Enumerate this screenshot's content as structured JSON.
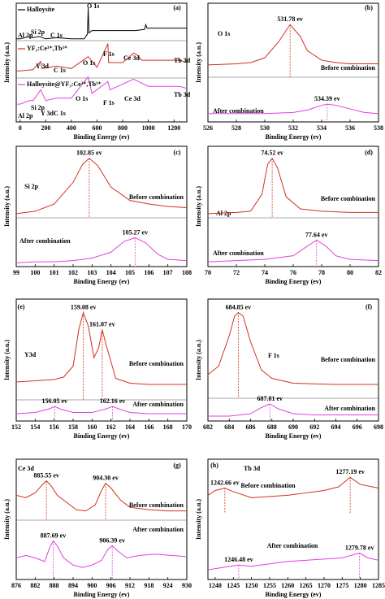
{
  "chart_data": [
    {
      "type": "line",
      "panel_label": "(a)",
      "xlabel": "Binding Energy (ev)",
      "ylabel": "Intensity (a.u.)",
      "xlim": [
        -30,
        1300
      ],
      "xticks": [
        0,
        200,
        400,
        600,
        800,
        1000,
        1200
      ],
      "ylim": [
        0,
        100
      ],
      "series": [
        {
          "name": "Halloysite",
          "color": "#000000",
          "x": [
            -30,
            0,
            75,
            100,
            150,
            200,
            285,
            400,
            500,
            525,
            531,
            537,
            560,
            700,
            900,
            970,
            980,
            990,
            1100,
            1300
          ],
          "values": [
            70,
            70,
            72,
            71,
            72,
            70,
            71,
            70,
            70,
            74,
            96,
            75,
            77,
            77,
            77,
            78,
            82,
            79,
            79,
            79
          ],
          "peak_labels": [
            "Al 2p",
            "Si 2p",
            "C 1s",
            "O 1s"
          ]
        },
        {
          "name": "YF₃:Ce³⁺,Tb³⁺",
          "color": "#d2301e",
          "x": [
            -30,
            0,
            100,
            160,
            170,
            285,
            400,
            531,
            600,
            685,
            690,
            800,
            885,
            904,
            950,
            1242,
            1277,
            1300
          ],
          "values": [
            43,
            43,
            44,
            51,
            45,
            47,
            45,
            55,
            46,
            66,
            50,
            50,
            58,
            57,
            52,
            52,
            51,
            50
          ],
          "peak_labels": [
            "Y 3d",
            "C 1s",
            "O 1s",
            "F 1s",
            "Ce 3d",
            "Tb 3d"
          ]
        },
        {
          "name": "Halloysite@YF₃:Ce³⁺,Tb³⁺",
          "color": "#e040e0",
          "x": [
            -30,
            0,
            74,
            102,
            160,
            200,
            285,
            400,
            531,
            560,
            685,
            700,
            885,
            904,
            1000,
            1242,
            1277,
            1300
          ],
          "values": [
            15,
            15,
            18,
            18,
            27,
            18,
            20,
            20,
            38,
            24,
            34,
            27,
            36,
            35,
            30,
            30,
            29,
            28
          ],
          "peak_labels": [
            "Al 2p",
            "Si 2p",
            "Y 3d",
            "C 1s",
            "O 1s",
            "F 1s",
            "Ce 3d",
            "Tb 3d"
          ]
        }
      ]
    },
    {
      "type": "line",
      "panel_label": "(b)",
      "title": "O 1s",
      "xlabel": "Binding Energy (ev)",
      "ylabel": "Intensity (a.u.)",
      "xlim": [
        526,
        538
      ],
      "xticks": [
        526,
        528,
        530,
        532,
        534,
        536,
        538
      ],
      "ylim": [
        0,
        100
      ],
      "series": [
        {
          "name": "Before combination",
          "color": "#d2301e",
          "x": [
            526,
            528,
            529,
            530,
            531,
            531.78,
            532.5,
            533,
            534,
            535,
            536,
            538
          ],
          "values": [
            48,
            49,
            50,
            54,
            68,
            82,
            72,
            60,
            52,
            50,
            49,
            49
          ],
          "annotations": [
            {
              "value": 531.78,
              "label": "531.78 ev"
            }
          ]
        },
        {
          "name": "After combination",
          "color": "#e040e0",
          "x": [
            526,
            528,
            530,
            532,
            533,
            534,
            534.39,
            535,
            536,
            537,
            538
          ],
          "values": [
            7,
            7,
            7,
            8,
            10,
            14,
            15,
            14,
            11,
            8,
            7
          ],
          "annotations": [
            {
              "value": 534.39,
              "label": "534.39 ev"
            }
          ]
        }
      ]
    },
    {
      "type": "line",
      "panel_label": "(c)",
      "title": "Si 2p",
      "xlabel": "Binding Energy (ev)",
      "ylabel": "Intensity (a.u.)",
      "xlim": [
        99,
        108
      ],
      "xticks": [
        99,
        100,
        101,
        102,
        103,
        104,
        105,
        106,
        107,
        108
      ],
      "ylim": [
        0,
        100
      ],
      "series": [
        {
          "name": "Before combination",
          "color": "#d2301e",
          "x": [
            99,
            100,
            101,
            102,
            102.5,
            102.85,
            103.3,
            104,
            105,
            106,
            107,
            108
          ],
          "values": [
            44,
            46,
            52,
            70,
            85,
            90,
            84,
            66,
            55,
            52,
            50,
            49
          ],
          "annotations": [
            {
              "value": 102.85,
              "label": "102.85 ev"
            }
          ]
        },
        {
          "name": "After combination",
          "color": "#e040e0",
          "x": [
            99,
            100,
            101,
            102,
            103,
            104,
            104.7,
            105.27,
            105.8,
            106.5,
            107,
            108
          ],
          "values": [
            3,
            4,
            4,
            5,
            7,
            12,
            21,
            24,
            20,
            10,
            6,
            5
          ],
          "annotations": [
            {
              "value": 105.27,
              "label": "105.27 ev"
            }
          ]
        }
      ]
    },
    {
      "type": "line",
      "panel_label": "(d)",
      "title": "Al 2p",
      "xlabel": "Binding Energy (ev)",
      "ylabel": "Intensity (a.u.)",
      "xlim": [
        70,
        82
      ],
      "xticks": [
        70,
        72,
        74,
        76,
        78,
        80,
        82
      ],
      "ylim": [
        0,
        100
      ],
      "series": [
        {
          "name": "Before combination",
          "color": "#d2301e",
          "x": [
            70,
            72,
            73,
            73.8,
            74.2,
            74.52,
            74.9,
            75.5,
            76.5,
            78,
            80,
            82
          ],
          "values": [
            44,
            45,
            46,
            60,
            85,
            90,
            82,
            58,
            48,
            46,
            45,
            45
          ],
          "annotations": [
            {
              "value": 74.52,
              "label": "74.52 ev"
            }
          ]
        },
        {
          "name": "After combination",
          "color": "#e040e0",
          "x": [
            70,
            72,
            74,
            76,
            77,
            77.64,
            78.3,
            79,
            80,
            82
          ],
          "values": [
            4,
            5,
            6,
            9,
            17,
            22,
            17,
            9,
            6,
            5
          ],
          "annotations": [
            {
              "value": 77.64,
              "label": "77.64 ev"
            }
          ]
        }
      ]
    },
    {
      "type": "line",
      "panel_label": "(e)",
      "title": "Y3d",
      "xlabel": "Binding Energy (ev)",
      "ylabel": "Intensity (a.u.)",
      "xlim": [
        152,
        170
      ],
      "xticks": [
        152,
        154,
        156,
        158,
        160,
        162,
        164,
        166,
        168,
        170
      ],
      "ylim": [
        0,
        100
      ],
      "series": [
        {
          "name": "Before combination",
          "color": "#d2301e",
          "x": [
            152,
            154,
            156,
            157,
            158,
            158.6,
            159.08,
            159.6,
            160.2,
            160.7,
            161.07,
            161.5,
            162.5,
            164,
            166,
            170
          ],
          "values": [
            32,
            33,
            34,
            36,
            45,
            75,
            89,
            78,
            52,
            60,
            75,
            62,
            35,
            31,
            30,
            30
          ],
          "annotations": [
            {
              "value": 159.08,
              "label": "159.08 ev"
            },
            {
              "value": 161.07,
              "label": "161.07 ev"
            }
          ]
        },
        {
          "name": "After combination",
          "color": "#e040e0",
          "x": [
            152,
            154,
            155.5,
            156.05,
            156.6,
            158,
            160,
            161.5,
            162.16,
            162.8,
            164,
            166,
            170
          ],
          "values": [
            6,
            7,
            10,
            12,
            10,
            7,
            7,
            10,
            12,
            10,
            7,
            6,
            6
          ],
          "annotations": [
            {
              "value": 156.05,
              "label": "156.05 ev"
            },
            {
              "value": 162.16,
              "label": "162.16 ev"
            }
          ]
        }
      ]
    },
    {
      "type": "line",
      "panel_label": "(f)",
      "title": "F 1s",
      "xlabel": "Binding Energy (ev)",
      "ylabel": "Intensity (a.u.)",
      "xlim": [
        682,
        698
      ],
      "xticks": [
        682,
        684,
        686,
        688,
        690,
        692,
        694,
        696,
        698
      ],
      "ylim": [
        0,
        100
      ],
      "series": [
        {
          "name": "Before combination",
          "color": "#d2301e",
          "x": [
            682,
            683,
            684,
            684.5,
            684.85,
            685.3,
            686,
            687,
            688,
            690,
            694,
            698
          ],
          "values": [
            38,
            45,
            70,
            86,
            89,
            86,
            65,
            42,
            35,
            31,
            30,
            30
          ],
          "annotations": [
            {
              "value": 684.85,
              "label": "684.85 ev"
            }
          ]
        },
        {
          "name": "After combination",
          "color": "#e040e0",
          "x": [
            682,
            684,
            686,
            687,
            687.81,
            688.6,
            690,
            692,
            698
          ],
          "values": [
            4,
            4,
            6,
            11,
            14,
            10,
            6,
            5,
            5
          ],
          "annotations": [
            {
              "value": 687.81,
              "label": "687.81 ev"
            }
          ]
        }
      ]
    },
    {
      "type": "line",
      "panel_label": "(g)",
      "title": "Ce 3d",
      "xlabel": "Binding Energy (ev)",
      "ylabel": "Intensity (a.u.)",
      "xlim": [
        876,
        930
      ],
      "xticks": [
        876,
        882,
        888,
        894,
        900,
        906,
        912,
        918,
        924,
        930
      ],
      "ylim": [
        0,
        100
      ],
      "series": [
        {
          "name": "Before combination",
          "color": "#d2301e",
          "x": [
            876,
            879,
            882,
            884,
            885.55,
            887,
            889,
            892,
            895,
            898,
            901,
            903,
            904.3,
            906,
            909,
            912,
            918,
            924,
            930
          ],
          "values": [
            70,
            68,
            72,
            78,
            82,
            78,
            70,
            64,
            58,
            57,
            62,
            74,
            80,
            76,
            66,
            60,
            58,
            57,
            57
          ],
          "annotations": [
            {
              "value": 885.55,
              "label": "885.55 ev"
            },
            {
              "value": 904.3,
              "label": "904.30 ev"
            }
          ]
        },
        {
          "name": "After combination",
          "color": "#e040e0",
          "x": [
            876,
            879,
            882,
            885,
            886.5,
            887.69,
            889,
            891,
            894,
            897,
            900,
            903,
            905,
            906.39,
            908,
            911,
            915,
            920,
            925,
            930
          ],
          "values": [
            18,
            20,
            18,
            15,
            26,
            32,
            28,
            18,
            12,
            10,
            12,
            16,
            25,
            28,
            24,
            18,
            20,
            21,
            20,
            19
          ],
          "annotations": [
            {
              "value": 887.69,
              "label": "887.69 ev"
            },
            {
              "value": 906.39,
              "label": "906.39 ev"
            }
          ]
        }
      ]
    },
    {
      "type": "line",
      "panel_label": "(h)",
      "title": "Tb 3d",
      "xlabel": "Binding Energy (ev)",
      "ylabel": "Intensity (a.u.)",
      "xlim": [
        1238,
        1285
      ],
      "xticks": [
        1240,
        1245,
        1250,
        1255,
        1260,
        1265,
        1270,
        1275,
        1280,
        1285
      ],
      "ylim": [
        0,
        100
      ],
      "series": [
        {
          "name": "Before combination",
          "color": "#d2301e",
          "x": [
            1238,
            1240,
            1242.66,
            1245,
            1250,
            1255,
            1260,
            1265,
            1270,
            1274,
            1277.19,
            1280,
            1285
          ],
          "values": [
            70,
            74,
            76,
            73,
            68,
            69,
            70,
            72,
            74,
            77,
            85,
            79,
            76
          ],
          "annotations": [
            {
              "value": 1242.66,
              "label": "1242.66 ev"
            },
            {
              "value": 1277.19,
              "label": "1277.19 ev"
            }
          ]
        },
        {
          "name": "After combination",
          "color": "#e040e0",
          "x": [
            1238,
            1242,
            1246.48,
            1250,
            1255,
            1260,
            1265,
            1270,
            1275,
            1279.78,
            1282,
            1285
          ],
          "values": [
            8,
            10,
            12,
            11,
            13,
            15,
            16,
            17,
            18,
            22,
            18,
            16
          ],
          "annotations": [
            {
              "value": 1246.48,
              "label": "1246.48 ev"
            },
            {
              "value": 1279.78,
              "label": "1279.78 ev"
            }
          ]
        }
      ]
    }
  ]
}
